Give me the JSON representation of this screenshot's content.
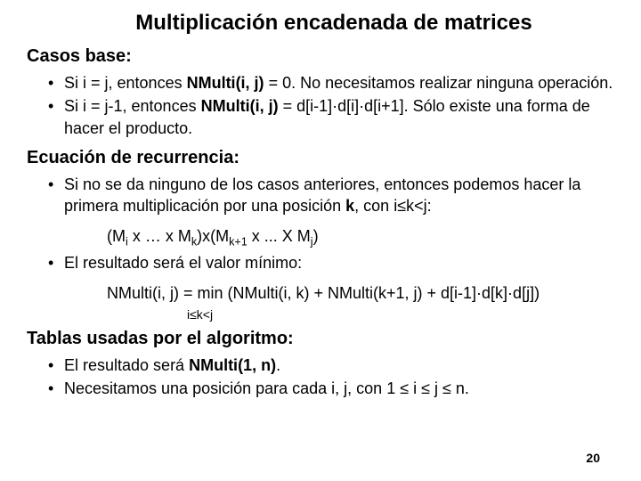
{
  "title": "Multiplicación encadenada de matrices",
  "sections": {
    "base": {
      "heading": "Casos base:",
      "items": [
        "Si i = j, entonces <span class='bold'>NMulti(i, j)</span> = 0. No necesitamos realizar ninguna operación.",
        "Si i = j-1, entonces <span class='bold'>NMulti(i, j)</span> = d[i-1]·d[i]·d[i+1]. Sólo existe una forma de hacer el producto."
      ]
    },
    "recurrence": {
      "heading": "Ecuación de recurrencia:",
      "items": [
        "Si no se da ninguno de los casos anteriores, entonces podemos hacer la primera multiplicación por una posición <span class='bold'>k</span>, con i≤k&lt;j:",
        "El resultado será el valor mínimo:"
      ],
      "sub1": "(M<sub>i</sub> x … x M<sub>k</sub>)x(M<sub>k+1</sub> x ... X M<sub>j</sub>)",
      "sub2": "NMulti(i, j) = min (NMulti(i, k) + NMulti(k+1, j) + d[i-1]·d[k]·d[j])",
      "sub3": "i≤k&lt;j"
    },
    "tables": {
      "heading": "Tablas usadas por el algoritmo:",
      "items": [
        "El resultado será <span class='bold'>NMulti(1, n)</span>.",
        "Necesitamos una posición para cada i, j, con 1 ≤ i ≤ j ≤ n."
      ]
    }
  },
  "page_number": "20",
  "style": {
    "background_color": "#ffffff",
    "text_color": "#000000",
    "title_fontsize": 24,
    "heading_fontsize": 20,
    "body_fontsize": 18,
    "small_fontsize": 14,
    "font_family": "Arial"
  }
}
